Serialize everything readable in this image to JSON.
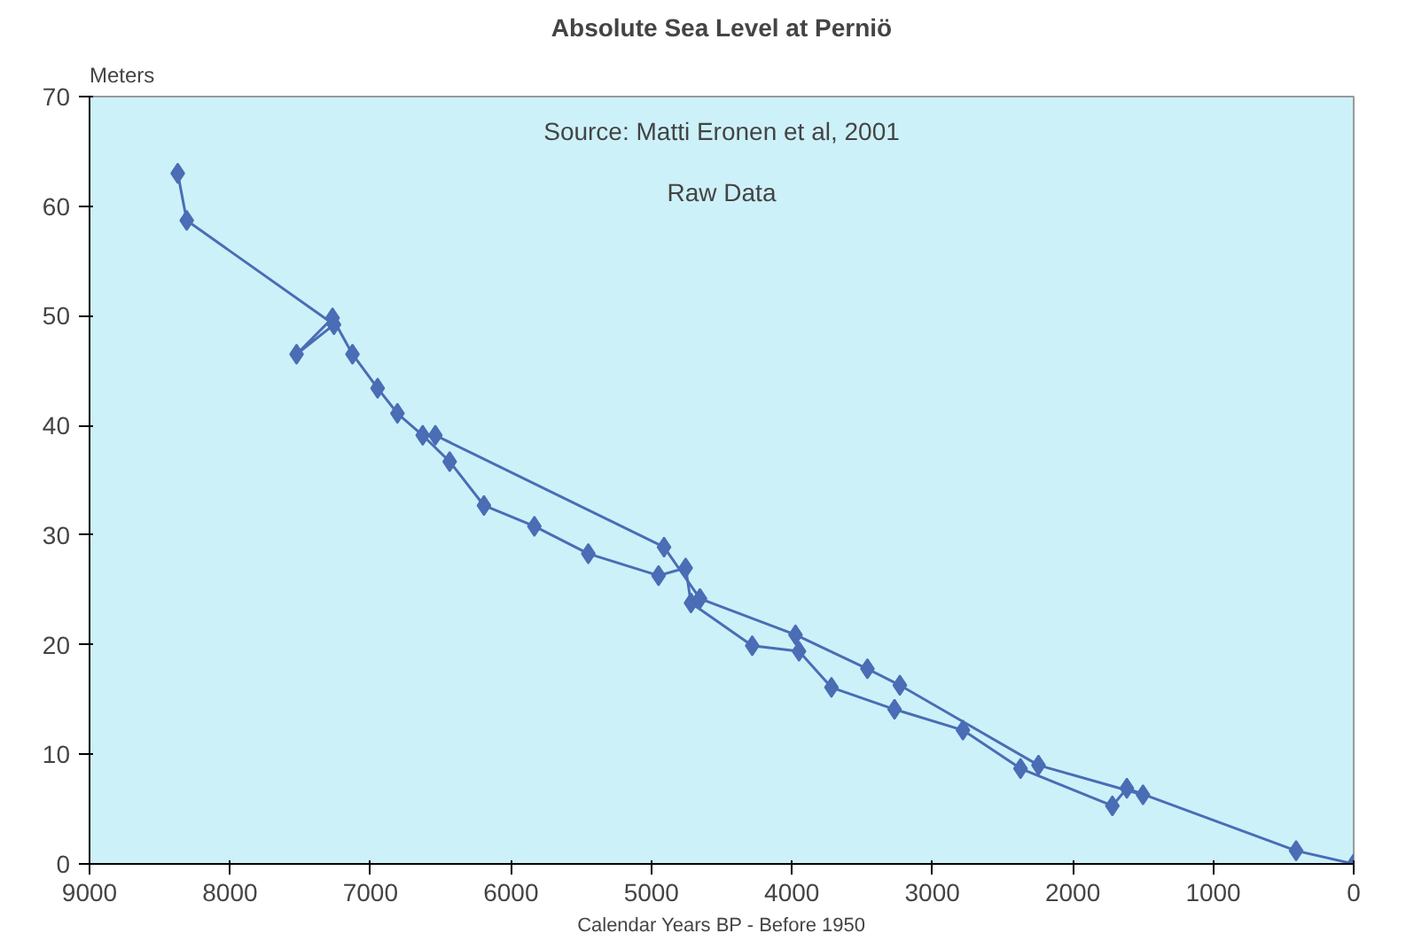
{
  "chart_data": {
    "type": "line",
    "title": "Absolute Sea Level at Perniö",
    "ylabel": "Meters",
    "xlabel": "Calendar Years BP - Before 1950",
    "annotations": [
      "Source: Matti Eronen et al, 2001",
      "Raw Data"
    ],
    "series": [
      {
        "color": "#4a6db5",
        "x": [
          8372,
          8308,
          7260,
          7526,
          7270,
          7128,
          6949,
          6808,
          6628,
          6436,
          6192,
          5833,
          5449,
          4949,
          4756,
          4718,
          4282,
          3949,
          3718,
          3269,
          2782,
          2372,
          1718,
          1615,
          410,
          0
        ],
        "values": [
          63.0,
          58.7,
          49.2,
          46.5,
          49.8,
          46.5,
          43.4,
          41.1,
          39.1,
          36.7,
          32.7,
          30.8,
          28.3,
          26.3,
          27.0,
          23.8,
          19.9,
          19.4,
          16.1,
          14.1,
          12.2,
          8.7,
          5.3,
          6.9,
          1.2,
          0
        ]
      },
      {
        "color": "#4a6db5",
        "x": [
          6538,
          4910,
          4654,
          3974,
          3462,
          3231,
          2244,
          1500
        ],
        "values": [
          39.1,
          28.9,
          24.2,
          20.9,
          17.8,
          16.3,
          9.0,
          6.3
        ]
      }
    ],
    "xlim": [
      9000,
      0
    ],
    "ylim": [
      0,
      70
    ],
    "xticks": [
      9000,
      8000,
      7000,
      6000,
      5000,
      4000,
      3000,
      2000,
      1000,
      0
    ],
    "yticks": [
      0,
      10,
      20,
      30,
      40,
      50,
      60,
      70
    ],
    "grid": false,
    "marker": "diamond",
    "line_style": "solid"
  }
}
